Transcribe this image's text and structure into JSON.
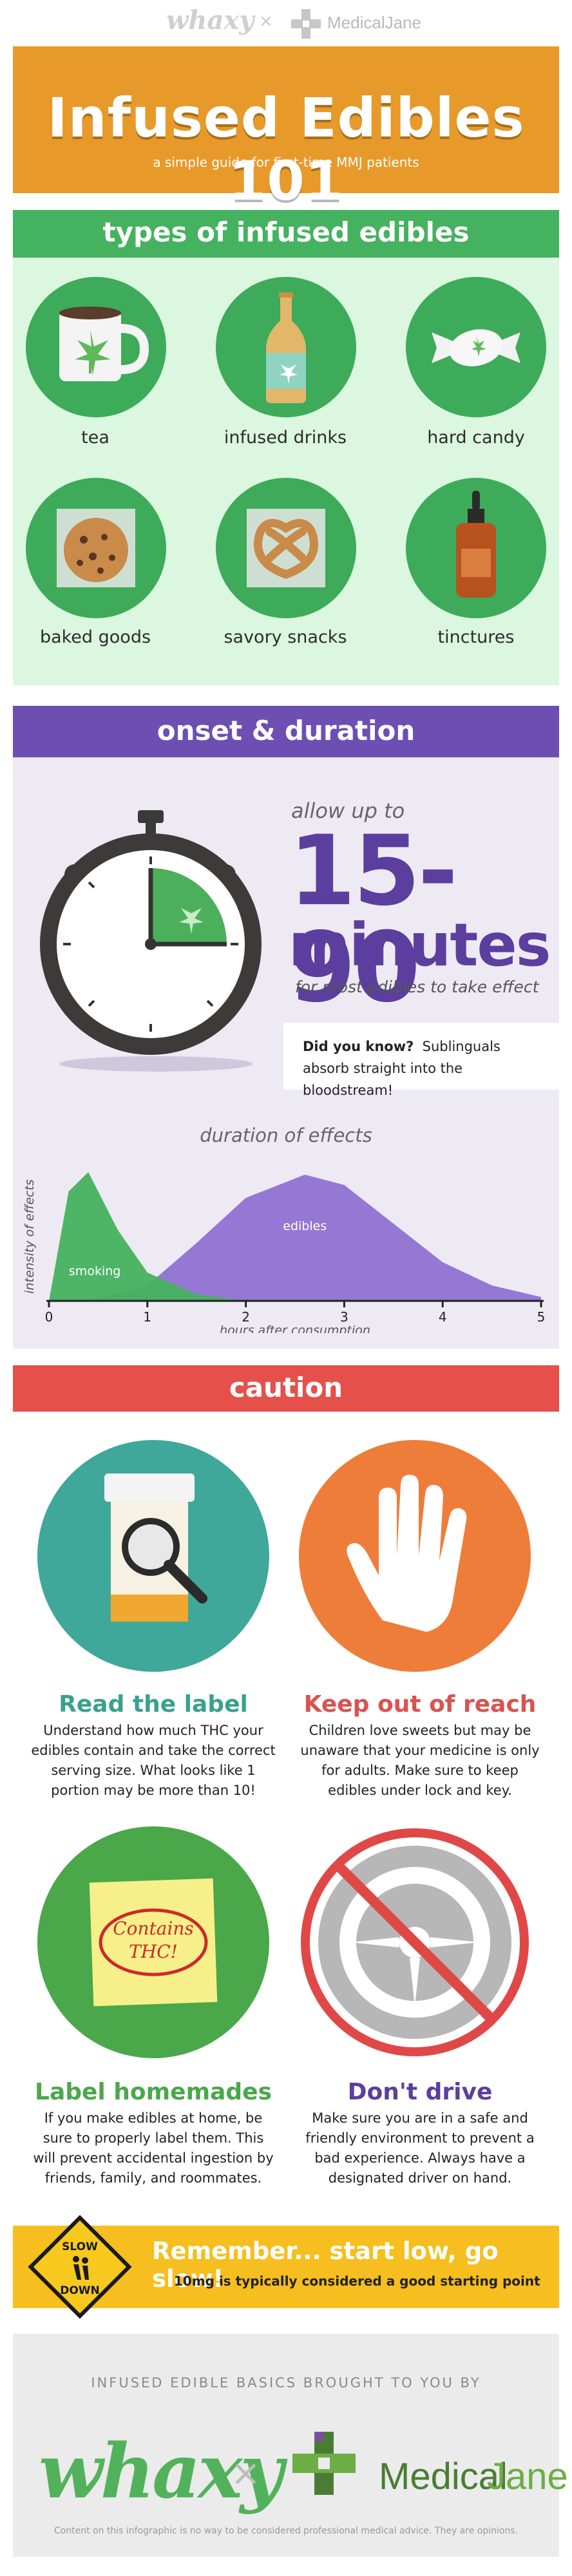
{
  "top_logos": {
    "left": "whaxy",
    "separator": "×",
    "right": "MedicalJane"
  },
  "header": {
    "title": "Infused Edibles 101",
    "subtitle": "a simple guide for first-time MMJ patients"
  },
  "types": {
    "heading": "types of infused edibles",
    "items": [
      {
        "label": "tea",
        "icon": "tea-cup-icon"
      },
      {
        "label": "infused drinks",
        "icon": "bottle-icon"
      },
      {
        "label": "hard candy",
        "icon": "candy-icon"
      },
      {
        "label": "baked goods",
        "icon": "cookie-icon"
      },
      {
        "label": "savory snacks",
        "icon": "pretzel-icon"
      },
      {
        "label": "tinctures",
        "icon": "dropper-bottle-icon"
      }
    ]
  },
  "onset": {
    "heading": "onset & duration",
    "allow": "allow up to",
    "range": "15-90",
    "minutes": "minutes",
    "for_most": "for most edibles to take effect",
    "did_you_know_label": "Did you know?",
    "did_you_know_text": "Sublinguals absorb straight into the bloodstream!"
  },
  "chart_data": {
    "type": "area",
    "title": "duration of effects",
    "xlabel": "hours after consumption",
    "ylabel": "intensity of effects",
    "x_ticks": [
      "0",
      "1",
      "2",
      "3",
      "4",
      "5"
    ],
    "xlim": [
      0,
      5
    ],
    "series": [
      {
        "name": "smoking",
        "color": "#45b25f",
        "peak_x": 0.4,
        "x": [
          0,
          0.2,
          0.4,
          0.7,
          1.0,
          1.5,
          2.0
        ],
        "y": [
          0.0,
          0.85,
          1.0,
          0.55,
          0.22,
          0.05,
          0.0
        ]
      },
      {
        "name": "edibles",
        "color": "#8a6cd0",
        "peak_x": 2.6,
        "x": [
          0,
          0.5,
          1.0,
          1.5,
          2.0,
          2.6,
          3.0,
          3.5,
          4.0,
          4.5,
          5.0
        ],
        "y": [
          0.0,
          0.02,
          0.12,
          0.45,
          0.8,
          0.98,
          0.9,
          0.6,
          0.3,
          0.12,
          0.03
        ]
      }
    ]
  },
  "caution": {
    "heading": "caution",
    "items": [
      {
        "title": "Read the label",
        "color": "#3aa18e",
        "text": "Understand how much THC your edibles contain and take the correct serving size. What looks like 1 portion may be more than 10!"
      },
      {
        "title": "Keep out of reach",
        "color": "#d9534f",
        "text": "Children love sweets but may be unaware that your medicine is only for adults. Make sure to keep edibles under lock and key."
      },
      {
        "title": "Label homemades",
        "color": "#4aa84a",
        "text": "If you make edibles at home, be sure to properly label them. This will prevent accidental ingestion by friends, family, and roommates."
      },
      {
        "title": "Don't drive",
        "color": "#5c3e9f",
        "text": "Make sure you are in a safe and friendly environment to prevent a bad experience. Always have a designated driver on hand."
      }
    ],
    "note_text": "Contains THC!"
  },
  "remember": {
    "sign_top": "SLOW",
    "sign_bottom": "DOWN",
    "title": "Remember...  start low, go slow!",
    "subtitle": "10mg is typically considered a good starting point"
  },
  "footer": {
    "brought": "INFUSED EDIBLE BASICS BROUGHT TO YOU BY",
    "whaxy": "whaxy",
    "x": "×",
    "medical": "Medical",
    "jane": "Jane",
    "disclaimer": "Content on this infographic is no way to be considered professional medical advice. They are opinions."
  }
}
